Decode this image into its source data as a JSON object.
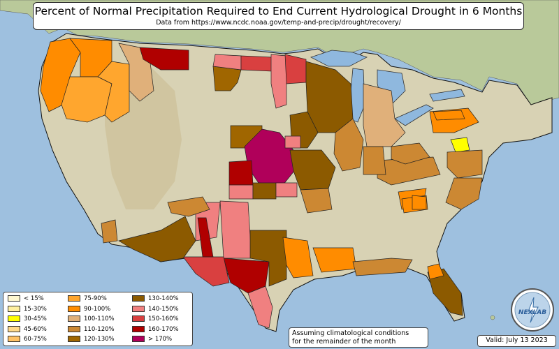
{
  "title": "Percent of Normal Precipitation Required to End Current Hydrological Drought in 6 Months",
  "subtitle": "Data from https://www.ncdc.noaa.gov/temp-and-precip/drought/recovery/",
  "note_line1": "Assuming climatological conditions",
  "note_line2": "for the remainder of the month",
  "valid": "Valid: July 13 2023",
  "logo_text": "NEXLAB",
  "colors": {
    "ocean": "#9ec0df",
    "land": "#d8d2b4",
    "land_green": "#b9c99a",
    "mountain": "#cbbd92",
    "lake": "#8fb8de",
    "border": "#111111"
  },
  "legend": [
    {
      "label": "< 15%",
      "color": "#fff8d0"
    },
    {
      "label": "15-30%",
      "color": "#fff0a0"
    },
    {
      "label": "30-45%",
      "color": "#ffff00"
    },
    {
      "label": "45-60%",
      "color": "#ffd98a"
    },
    {
      "label": "60-75%",
      "color": "#ffc266"
    },
    {
      "label": "75-90%",
      "color": "#ffa62e"
    },
    {
      "label": "90-100%",
      "color": "#ff8c00"
    },
    {
      "label": "100-110%",
      "color": "#e0b07a"
    },
    {
      "label": "110-120%",
      "color": "#cc8833"
    },
    {
      "label": "120-130%",
      "color": "#a06600"
    },
    {
      "label": "130-140%",
      "color": "#8c5a00"
    },
    {
      "label": "140-150%",
      "color": "#f08080"
    },
    {
      "label": "150-160%",
      "color": "#d94040"
    },
    {
      "label": "160-170%",
      "color": "#b00000"
    },
    {
      "label": "> 170%",
      "color": "#b0005a"
    }
  ],
  "regions": [
    {
      "name": "pacific-northwest-coast",
      "category": "90-100%"
    },
    {
      "name": "oregon-interior",
      "category": "75-90%"
    },
    {
      "name": "idaho-north",
      "category": "100-110%"
    },
    {
      "name": "montana-north",
      "category": "160-170%"
    },
    {
      "name": "north-dakota-east",
      "category": "150-160%"
    },
    {
      "name": "minnesota-west",
      "category": "140-150%"
    },
    {
      "name": "wisconsin-iowa",
      "category": "130-140%"
    },
    {
      "name": "nebraska-kansas-core",
      "category": "> 170%"
    },
    {
      "name": "kansas-oklahoma",
      "category": "160-170%"
    },
    {
      "name": "missouri-arkansas",
      "category": "130-140%"
    },
    {
      "name": "texas-central",
      "category": "160-170%"
    },
    {
      "name": "texas-west",
      "category": "150-160%"
    },
    {
      "name": "new-mexico-east",
      "category": "140-150%"
    },
    {
      "name": "arizona-nm-south",
      "category": "130-140%"
    },
    {
      "name": "florida-peninsula",
      "category": "130-140%"
    },
    {
      "name": "mississippi-alabama",
      "category": "90-100%"
    },
    {
      "name": "delaware-maryland",
      "category": "30-45%"
    }
  ]
}
